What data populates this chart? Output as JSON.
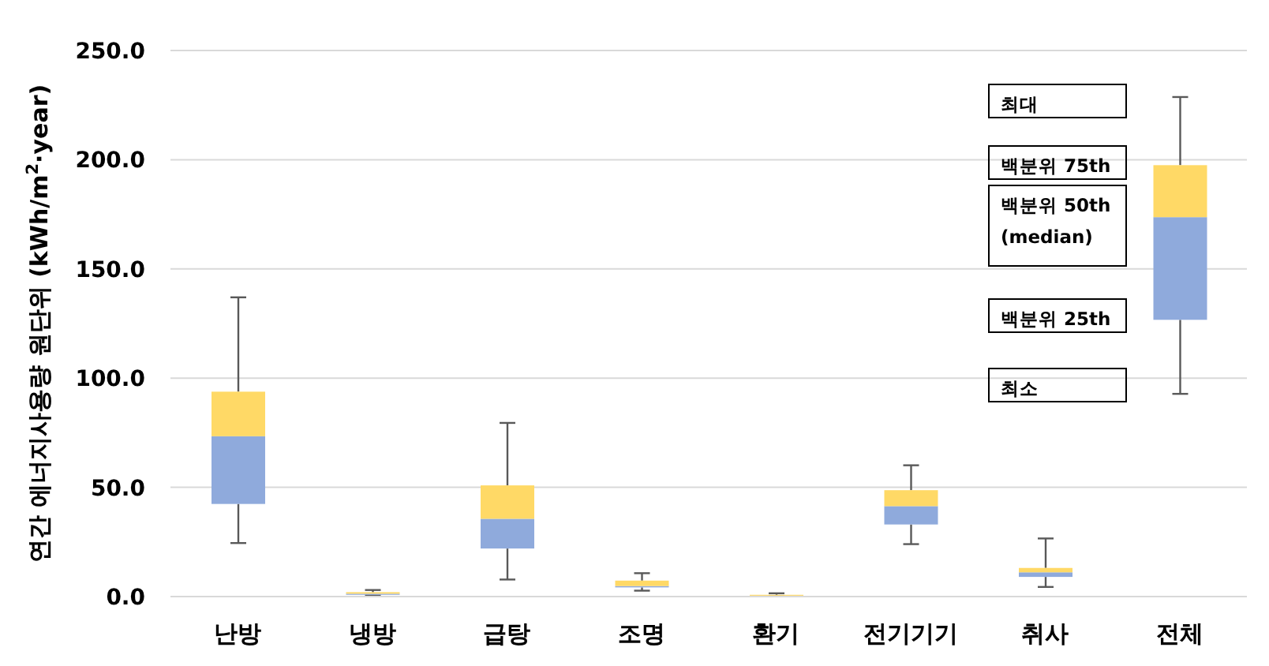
{
  "chart_data": {
    "type": "box",
    "ylabel": "연간 에너지사용량 원단위 (kWh/m$^{2}$·year)",
    "categories": [
      "난방",
      "냉방",
      "급탕",
      "조명",
      "환기",
      "전기기기",
      "취사",
      "전체"
    ],
    "color": "#ffd966",
    "series": [
      {
        "color": "#8faadc",
        "boxes": [
          {
            "low": 24.5,
            "q1": 42.4,
            "median": 73.4,
            "q3": 93.8,
            "high": 137
          },
          {
            "low": 0.5,
            "q1": 0.8,
            "median": 1.3,
            "q3": 2.0,
            "high": 3.0
          },
          {
            "low": 7.8,
            "q1": 22,
            "median": 35.6,
            "q3": 50.9,
            "high": 79.5
          },
          {
            "low": 2.7,
            "q1": 4.2,
            "median": 4.8,
            "q3": 7.3,
            "high": 10.7
          },
          {
            "low": 0.2,
            "q1": 0.3,
            "median": 0.4,
            "q3": 0.8,
            "high": 1.5
          },
          {
            "low": 24,
            "q1": 33,
            "median": 41.4,
            "q3": 48.7,
            "high": 60.1
          },
          {
            "low": 4.4,
            "q1": 9,
            "median": 11.1,
            "q3": 13.1,
            "high": 26.6
          },
          {
            "low": 92.8,
            "q1": 126.7,
            "median": 173.7,
            "q3": 197.5,
            "high": 228.7
          }
        ]
      }
    ],
    "ylim": [
      0,
      250
    ],
    "yticks": [
      {
        "value": 0,
        "label": "0.0"
      },
      {
        "value": 50,
        "label": "50.0"
      },
      {
        "value": 100,
        "label": "100.0"
      },
      {
        "value": 150,
        "label": "150.0"
      },
      {
        "value": 200,
        "label": "200.0"
      },
      {
        "value": 250,
        "label": "250.0"
      }
    ],
    "grid": "y",
    "annotations": [
      "최대",
      "백분위 75th",
      "백분위 50th (median)",
      "백분위 25th",
      "최소"
    ]
  }
}
